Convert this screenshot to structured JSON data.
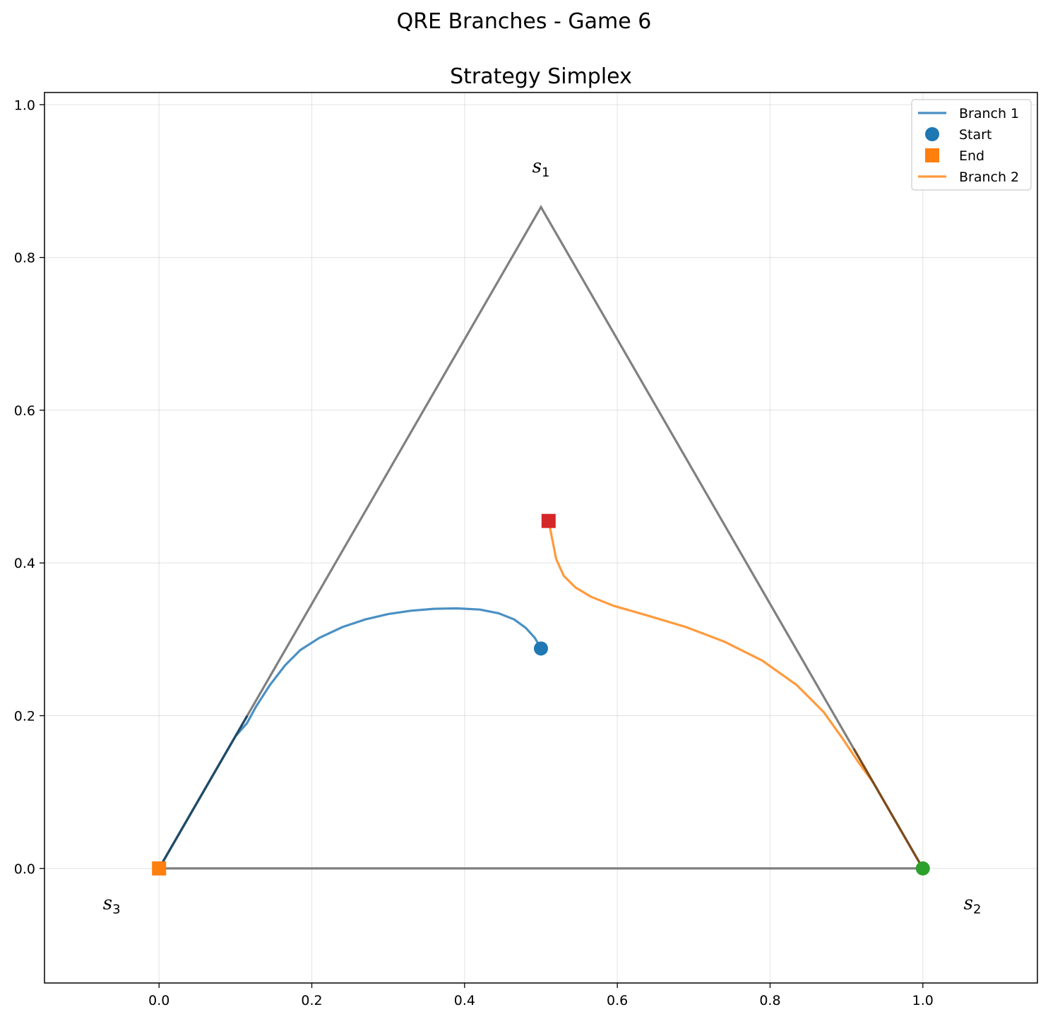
{
  "figure_title": "QRE Branches - Game 6",
  "chart_data": {
    "type": "line",
    "title": "Strategy Simplex",
    "xlabel": "",
    "ylabel": "",
    "xlim": [
      -0.15,
      1.15
    ],
    "ylim": [
      -0.15,
      1.016
    ],
    "xticks": [
      0.0,
      0.2,
      0.4,
      0.6,
      0.8,
      1.0
    ],
    "xtick_labels": [
      "0.0",
      "0.2",
      "0.4",
      "0.6",
      "0.8",
      "1.0"
    ],
    "yticks": [
      0.0,
      0.2,
      0.4,
      0.6,
      0.8,
      1.0
    ],
    "ytick_labels": [
      "0.0",
      "0.2",
      "0.4",
      "0.6",
      "0.8",
      "1.0"
    ],
    "grid": true,
    "legend_position": "upper right",
    "simplex": {
      "vertices": [
        {
          "label": "s",
          "sub": "1",
          "x": 0.5,
          "y": 0.866,
          "label_x": 0.5,
          "label_y": 0.92
        },
        {
          "label": "s",
          "sub": "2",
          "x": 1.0,
          "y": 0.0,
          "label_x": 1.065,
          "label_y": -0.045
        },
        {
          "label": "s",
          "sub": "3",
          "x": 0.0,
          "y": 0.0,
          "label_x": -0.062,
          "label_y": -0.045
        }
      ],
      "edge_color": "#808080"
    },
    "series": [
      {
        "name": "Branch 1",
        "color": "#4a90c4",
        "points": [
          [
            0.5,
            0.288
          ],
          [
            0.492,
            0.302
          ],
          [
            0.48,
            0.315
          ],
          [
            0.465,
            0.326
          ],
          [
            0.445,
            0.334
          ],
          [
            0.42,
            0.339
          ],
          [
            0.39,
            0.3405
          ],
          [
            0.36,
            0.34
          ],
          [
            0.33,
            0.3375
          ],
          [
            0.3,
            0.333
          ],
          [
            0.27,
            0.326
          ],
          [
            0.24,
            0.316
          ],
          [
            0.21,
            0.302
          ],
          [
            0.185,
            0.286
          ],
          [
            0.165,
            0.266
          ],
          [
            0.145,
            0.24
          ],
          [
            0.127,
            0.212
          ],
          [
            0.115,
            0.19
          ],
          [
            0.1,
            0.1732
          ],
          [
            0.07,
            0.1212
          ],
          [
            0.04,
            0.0693
          ],
          [
            0.0,
            0.0
          ]
        ],
        "start_marker": {
          "x": 0.5,
          "y": 0.288,
          "shape": "circle",
          "color": "#1f77b4"
        },
        "end_marker": {
          "x": 0.0,
          "y": 0.0,
          "shape": "square",
          "color": "#ff7f0e"
        }
      },
      {
        "name": "Branch 2",
        "color": "#ff9a3c",
        "points": [
          [
            0.51,
            0.455
          ],
          [
            0.515,
            0.43
          ],
          [
            0.52,
            0.405
          ],
          [
            0.53,
            0.383
          ],
          [
            0.545,
            0.368
          ],
          [
            0.565,
            0.356
          ],
          [
            0.595,
            0.344
          ],
          [
            0.64,
            0.331
          ],
          [
            0.69,
            0.316
          ],
          [
            0.74,
            0.297
          ],
          [
            0.79,
            0.272
          ],
          [
            0.835,
            0.24
          ],
          [
            0.87,
            0.205
          ],
          [
            0.895,
            0.17
          ],
          [
            0.915,
            0.14
          ],
          [
            0.935,
            0.1126
          ],
          [
            0.96,
            0.0693
          ],
          [
            0.98,
            0.0346
          ],
          [
            1.0,
            0.0
          ]
        ],
        "start_marker": {
          "x": 1.0,
          "y": 0.0,
          "shape": "circle",
          "color": "#2ca02c"
        },
        "end_marker": {
          "x": 0.51,
          "y": 0.455,
          "shape": "square",
          "color": "#d62728"
        }
      }
    ],
    "legend_entries": [
      {
        "label": "Branch 1",
        "kind": "line",
        "color": "#4a90c4"
      },
      {
        "label": "Start",
        "kind": "circle",
        "color": "#1f77b4"
      },
      {
        "label": "End",
        "kind": "square",
        "color": "#ff7f0e"
      },
      {
        "label": "Branch 2",
        "kind": "line",
        "color": "#ff9a3c"
      }
    ]
  }
}
